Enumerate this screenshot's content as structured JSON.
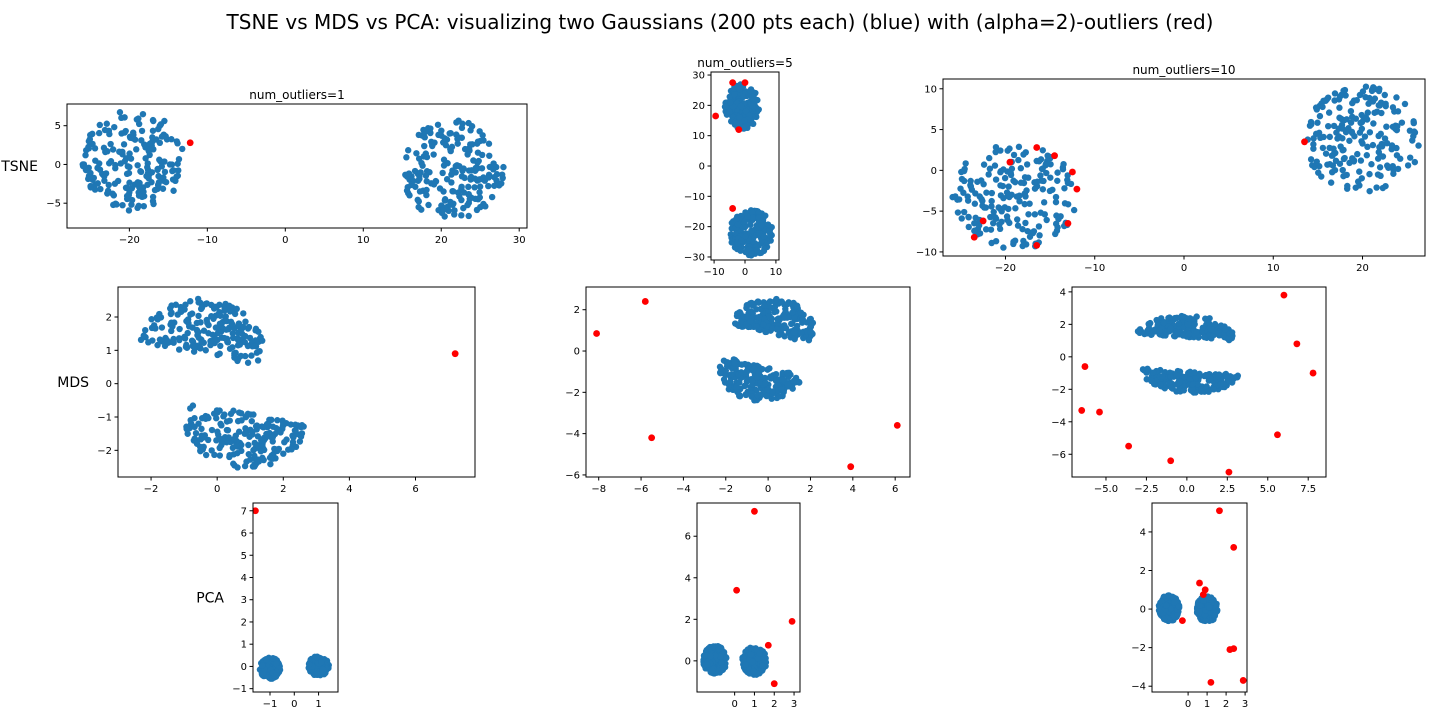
{
  "figure": {
    "title": "TSNE vs MDS vs PCA: visualizing two Gaussians (200 pts each) (blue) with (alpha=2)-outliers (red)",
    "row_labels": [
      "TSNE",
      "MDS",
      "PCA"
    ],
    "column_titles": [
      "num_outliers=1",
      "num_outliers=5",
      "num_outliers=10"
    ],
    "colors": {
      "inlier": "#1f77b4",
      "outlier": "#ff0000"
    }
  },
  "chart_data": [
    {
      "type": "scatter",
      "title": "num_outliers=1",
      "ylabel": "TSNE",
      "xlim": [
        -28,
        31
      ],
      "ylim": [
        -8.2,
        7.8
      ],
      "xticks": [
        -20,
        -10,
        0,
        10,
        20,
        30
      ],
      "yticks": [
        -5,
        0,
        5
      ],
      "clusters": [
        {
          "cx": -19.5,
          "cy": 0.5,
          "r": 6.5,
          "ry": 6.5,
          "n": 200,
          "type": "disk"
        },
        {
          "cx": 21.5,
          "cy": -0.8,
          "r": 6.5,
          "ry": 6.5,
          "n": 200,
          "type": "disk"
        }
      ],
      "outliers": [
        [
          -12.2,
          2.8
        ]
      ]
    },
    {
      "type": "scatter",
      "title": "num_outliers=5",
      "ylabel": "",
      "xlim": [
        -11,
        11
      ],
      "ylim": [
        -31,
        31
      ],
      "xticks": [
        -10,
        0,
        10
      ],
      "yticks": [
        -30,
        -20,
        -10,
        0,
        10,
        20,
        30
      ],
      "clusters": [
        {
          "cx": -1,
          "cy": 19.5,
          "r": 5.5,
          "ry": 7.5,
          "n": 200,
          "type": "disk"
        },
        {
          "cx": 2,
          "cy": -22,
          "r": 7,
          "ry": 7.5,
          "n": 200,
          "type": "disk"
        }
      ],
      "outliers": [
        [
          -4,
          27.5
        ],
        [
          0,
          27.5
        ],
        [
          -9.5,
          16.5
        ],
        [
          -2,
          12
        ],
        [
          -4,
          -14
        ]
      ]
    },
    {
      "type": "scatter",
      "title": "num_outliers=10",
      "ylabel": "",
      "xlim": [
        -27,
        27
      ],
      "ylim": [
        -10.5,
        11.2
      ],
      "xticks": [
        -20,
        -10,
        0,
        10,
        20
      ],
      "yticks": [
        -10,
        -5,
        0,
        5,
        10
      ],
      "clusters": [
        {
          "cx": -19,
          "cy": -3.2,
          "r": 7,
          "ry": 6.5,
          "n": 200,
          "type": "disk"
        },
        {
          "cx": 20,
          "cy": 3.8,
          "r": 6.5,
          "ry": 6.5,
          "n": 200,
          "type": "disk"
        }
      ],
      "outliers": [
        [
          -19.5,
          1
        ],
        [
          -16.5,
          2.8
        ],
        [
          -14.5,
          1.8
        ],
        [
          -12.5,
          -0.2
        ],
        [
          -12,
          -2.3
        ],
        [
          -13,
          -6.5
        ],
        [
          -22.5,
          -6.2
        ],
        [
          -23.5,
          -8.2
        ],
        [
          -16.5,
          -9.2
        ],
        [
          13.5,
          3.5
        ]
      ]
    },
    {
      "type": "scatter",
      "title": "",
      "ylabel": "MDS",
      "xlim": [
        -3,
        7.8
      ],
      "ylim": [
        -2.8,
        2.9
      ],
      "xticks": [
        -2,
        0,
        2,
        4,
        6
      ],
      "yticks": [
        -2,
        -1,
        0,
        1,
        2
      ],
      "clusters": [
        {
          "cx": -0.5,
          "cy": 1.0,
          "r": 1.9,
          "ry": 1.55,
          "n": 200,
          "type": "half",
          "dir": 1,
          "tilt": 0.25
        },
        {
          "cx": 0.9,
          "cy": -1.0,
          "r": 1.9,
          "ry": 1.55,
          "n": 200,
          "type": "half",
          "dir": -1,
          "tilt": 0.25
        }
      ],
      "outliers": [
        [
          7.2,
          0.9
        ]
      ]
    },
    {
      "type": "scatter",
      "title": "",
      "ylabel": "",
      "xlim": [
        -8.6,
        6.7
      ],
      "ylim": [
        -6.1,
        3.1
      ],
      "xticks": [
        -8,
        -6,
        -4,
        -2,
        0,
        2,
        4,
        6
      ],
      "yticks": [
        -6,
        -4,
        -2,
        0,
        2
      ],
      "clusters": [
        {
          "cx": 0.2,
          "cy": 0.95,
          "r": 2.0,
          "ry": 1.6,
          "n": 200,
          "type": "half",
          "dir": 1,
          "tilt": 0.3
        },
        {
          "cx": -0.3,
          "cy": -0.85,
          "r": 2.0,
          "ry": 1.6,
          "n": 200,
          "type": "half",
          "dir": -1,
          "tilt": 0.3
        }
      ],
      "outliers": [
        [
          -8.1,
          0.85
        ],
        [
          -5.8,
          2.4
        ],
        [
          -5.5,
          -4.2
        ],
        [
          3.9,
          -5.6
        ],
        [
          6.1,
          -3.6
        ]
      ]
    },
    {
      "type": "scatter",
      "title": "",
      "ylabel": "",
      "xlim": [
        -7.1,
        8.6
      ],
      "ylim": [
        -7.4,
        4.3
      ],
      "xticks": [
        -5.0,
        -2.5,
        0.0,
        2.5,
        5.0,
        7.5
      ],
      "yticks": [
        -6,
        -4,
        -2,
        0,
        2,
        4
      ],
      "clusters": [
        {
          "cx": -0.1,
          "cy": 1.3,
          "r": 3.0,
          "ry": 1.25,
          "n": 200,
          "type": "half",
          "dir": 1,
          "tilt": 0.15
        },
        {
          "cx": 0.2,
          "cy": -1.0,
          "r": 3.0,
          "ry": 1.25,
          "n": 200,
          "type": "half",
          "dir": -1,
          "tilt": 0.15
        }
      ],
      "outliers": [
        [
          6.0,
          3.8
        ],
        [
          6.8,
          0.8
        ],
        [
          7.8,
          -1.0
        ],
        [
          -6.3,
          -0.6
        ],
        [
          -6.5,
          -3.3
        ],
        [
          -5.4,
          -3.4
        ],
        [
          -3.6,
          -5.5
        ],
        [
          -1.0,
          -6.4
        ],
        [
          2.6,
          -7.1
        ],
        [
          5.6,
          -4.8
        ]
      ]
    },
    {
      "type": "scatter",
      "title": "",
      "ylabel": "PCA",
      "xlim": [
        -1.7,
        1.8
      ],
      "ylim": [
        -1.15,
        7.35
      ],
      "xticks": [
        -1,
        0,
        1
      ],
      "yticks": [
        -1,
        0,
        1,
        2,
        3,
        4,
        5,
        6,
        7
      ],
      "clusters": [
        {
          "cx": -1.0,
          "cy": -0.08,
          "r": 0.42,
          "ry": 0.48,
          "n": 200,
          "type": "disk"
        },
        {
          "cx": 1.0,
          "cy": 0.02,
          "r": 0.42,
          "ry": 0.45,
          "n": 200,
          "type": "disk"
        }
      ],
      "outliers": [
        [
          -1.6,
          7.0
        ]
      ]
    },
    {
      "type": "scatter",
      "title": "",
      "ylabel": "",
      "xlim": [
        -1.9,
        3.3
      ],
      "ylim": [
        -1.5,
        7.6
      ],
      "xticks": [
        0,
        1,
        2,
        3
      ],
      "yticks": [
        0,
        2,
        4,
        6
      ],
      "clusters": [
        {
          "cx": -1.0,
          "cy": 0.05,
          "r": 0.62,
          "ry": 0.68,
          "n": 200,
          "type": "disk"
        },
        {
          "cx": 1.0,
          "cy": 0.0,
          "r": 0.62,
          "ry": 0.68,
          "n": 200,
          "type": "disk"
        }
      ],
      "outliers": [
        [
          1.0,
          7.2
        ],
        [
          0.1,
          3.4
        ],
        [
          2.9,
          1.9
        ],
        [
          1.7,
          0.75
        ],
        [
          2.0,
          -1.1
        ]
      ]
    },
    {
      "type": "scatter",
      "title": "",
      "ylabel": "",
      "xlim": [
        -1.9,
        3.1
      ],
      "ylim": [
        -4.3,
        5.5
      ],
      "xticks": [
        0,
        1,
        2,
        3
      ],
      "yticks": [
        -4,
        -2,
        0,
        2,
        4
      ],
      "clusters": [
        {
          "cx": -1.0,
          "cy": 0.05,
          "r": 0.55,
          "ry": 0.68,
          "n": 200,
          "type": "disk"
        },
        {
          "cx": 1.0,
          "cy": 0.0,
          "r": 0.55,
          "ry": 0.68,
          "n": 200,
          "type": "disk"
        }
      ],
      "outliers": [
        [
          1.65,
          5.1
        ],
        [
          2.4,
          3.2
        ],
        [
          0.6,
          1.35
        ],
        [
          0.9,
          1.0
        ],
        [
          0.8,
          0.75
        ],
        [
          -0.3,
          -0.6
        ],
        [
          2.2,
          -2.1
        ],
        [
          2.4,
          -2.05
        ],
        [
          1.2,
          -3.8
        ],
        [
          2.9,
          -3.7
        ]
      ]
    }
  ]
}
